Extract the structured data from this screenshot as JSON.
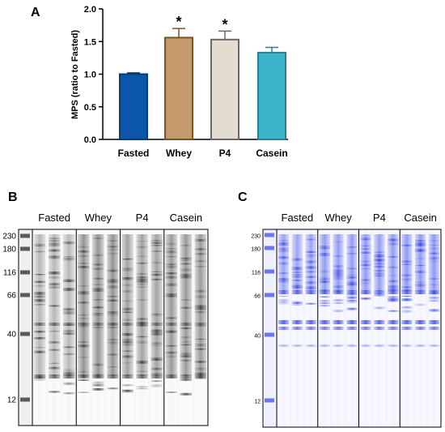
{
  "panels": {
    "a": {
      "letter": "A"
    },
    "b": {
      "letter": "B",
      "groups": [
        "Fasted",
        "Whey",
        "P4",
        "Casein"
      ],
      "ladder_labels": [
        "230",
        "180",
        "116",
        "66",
        "40",
        "12"
      ],
      "ladder_kda": [
        230,
        180,
        116,
        66,
        40,
        12
      ]
    },
    "c": {
      "letter": "C",
      "groups": [
        "Fasted",
        "Whey",
        "P4",
        "Casein"
      ],
      "ladder_labels": [
        "230",
        "180",
        "116",
        "66",
        "40",
        "12"
      ],
      "ladder_kda": [
        230,
        180,
        116,
        66,
        40,
        12
      ]
    }
  },
  "chart_data": {
    "type": "bar",
    "categories": [
      "Fasted",
      "Whey",
      "P4",
      "Casein"
    ],
    "values": [
      1.0,
      1.56,
      1.53,
      1.33
    ],
    "errors": [
      0.02,
      0.14,
      0.13,
      0.08
    ],
    "significance": [
      "",
      "*",
      "*",
      ""
    ],
    "ylabel": "MPS (ratio to Fasted)",
    "xlabel": "",
    "ylim": [
      0,
      2.0
    ],
    "yticks": [
      "0.0",
      "0.5",
      "1.0",
      "1.5",
      "2.0"
    ],
    "colors": {
      "Fasted": {
        "fill": "#0b56a8",
        "stroke": "#083c7a"
      },
      "Whey": {
        "fill": "#c49a6c",
        "stroke": "#7a5428"
      },
      "P4": {
        "fill": "#e3ddd0",
        "stroke": "#6a6a6a"
      },
      "Casein": {
        "fill": "#3db3cc",
        "stroke": "#2a8092"
      }
    }
  }
}
